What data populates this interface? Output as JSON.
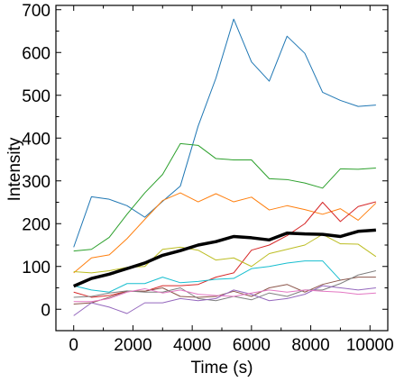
{
  "chart_data": {
    "type": "line",
    "title": "",
    "xlabel": "Time (s)",
    "ylabel": "Intensity",
    "xlim": [
      -600,
      10600
    ],
    "ylim": [
      -50,
      710
    ],
    "xticks": [
      0,
      2000,
      4000,
      6000,
      8000,
      10000
    ],
    "yticks": [
      0,
      100,
      200,
      300,
      400,
      500,
      600,
      700
    ],
    "grid": false,
    "legend": "none",
    "x": [
      0,
      600,
      1200,
      1800,
      2400,
      3000,
      3600,
      4200,
      4800,
      5400,
      6000,
      6600,
      7200,
      7800,
      8400,
      9000,
      9600,
      10200
    ],
    "series": [
      {
        "color": "#1f77b4",
        "width": 1,
        "values": [
          145,
          263,
          257,
          242,
          215,
          252,
          288,
          428,
          540,
          678,
          578,
          533,
          638,
          598,
          507,
          488,
          474,
          477
        ]
      },
      {
        "color": "#2ca02c",
        "width": 1,
        "values": [
          136,
          140,
          168,
          222,
          272,
          315,
          387,
          383,
          352,
          349,
          349,
          305,
          303,
          295,
          283,
          328,
          327,
          330
        ]
      },
      {
        "color": "#ff7f0e",
        "width": 1,
        "values": [
          85,
          120,
          127,
          165,
          210,
          254,
          272,
          251,
          270,
          251,
          262,
          232,
          242,
          233,
          222,
          235,
          208,
          248
        ]
      },
      {
        "color": "#d62728",
        "width": 1,
        "values": [
          40,
          28,
          32,
          42,
          42,
          55,
          55,
          58,
          75,
          85,
          138,
          150,
          172,
          200,
          250,
          205,
          240,
          251
        ]
      },
      {
        "color": "#bcbd22",
        "width": 1,
        "values": [
          88,
          85,
          90,
          98,
          100,
          140,
          145,
          138,
          115,
          120,
          100,
          130,
          140,
          150,
          175,
          153,
          152,
          123
        ]
      },
      {
        "color": "#17becf",
        "width": 1,
        "values": [
          55,
          45,
          40,
          60,
          60,
          75,
          62,
          65,
          70,
          72,
          95,
          100,
          108,
          113,
          113,
          68,
          null,
          null
        ]
      },
      {
        "color": "#8c564b",
        "width": 1,
        "values": [
          12,
          15,
          28,
          42,
          42,
          50,
          30,
          28,
          30,
          42,
          30,
          50,
          58,
          40,
          58,
          68,
          75,
          75
        ]
      },
      {
        "color": "#7f7f7f",
        "width": 1,
        "values": [
          28,
          30,
          38,
          43,
          40,
          40,
          50,
          25,
          20,
          30,
          22,
          38,
          30,
          45,
          45,
          60,
          80,
          90
        ]
      },
      {
        "color": "#9467bd",
        "width": 1,
        "values": [
          -15,
          15,
          5,
          -10,
          15,
          15,
          25,
          20,
          25,
          45,
          35,
          20,
          25,
          35,
          55,
          50,
          45,
          50
        ]
      },
      {
        "color": "#e377c2",
        "width": 1,
        "values": [
          18,
          18,
          25,
          40,
          48,
          38,
          45,
          35,
          32,
          30,
          38,
          45,
          40,
          45,
          42,
          40,
          35,
          38
        ]
      },
      {
        "color": "#000000",
        "width": 3.5,
        "values": [
          54,
          72,
          82,
          95,
          108,
          126,
          137,
          150,
          158,
          170,
          167,
          162,
          178,
          176,
          175,
          170,
          182,
          185
        ]
      }
    ]
  }
}
